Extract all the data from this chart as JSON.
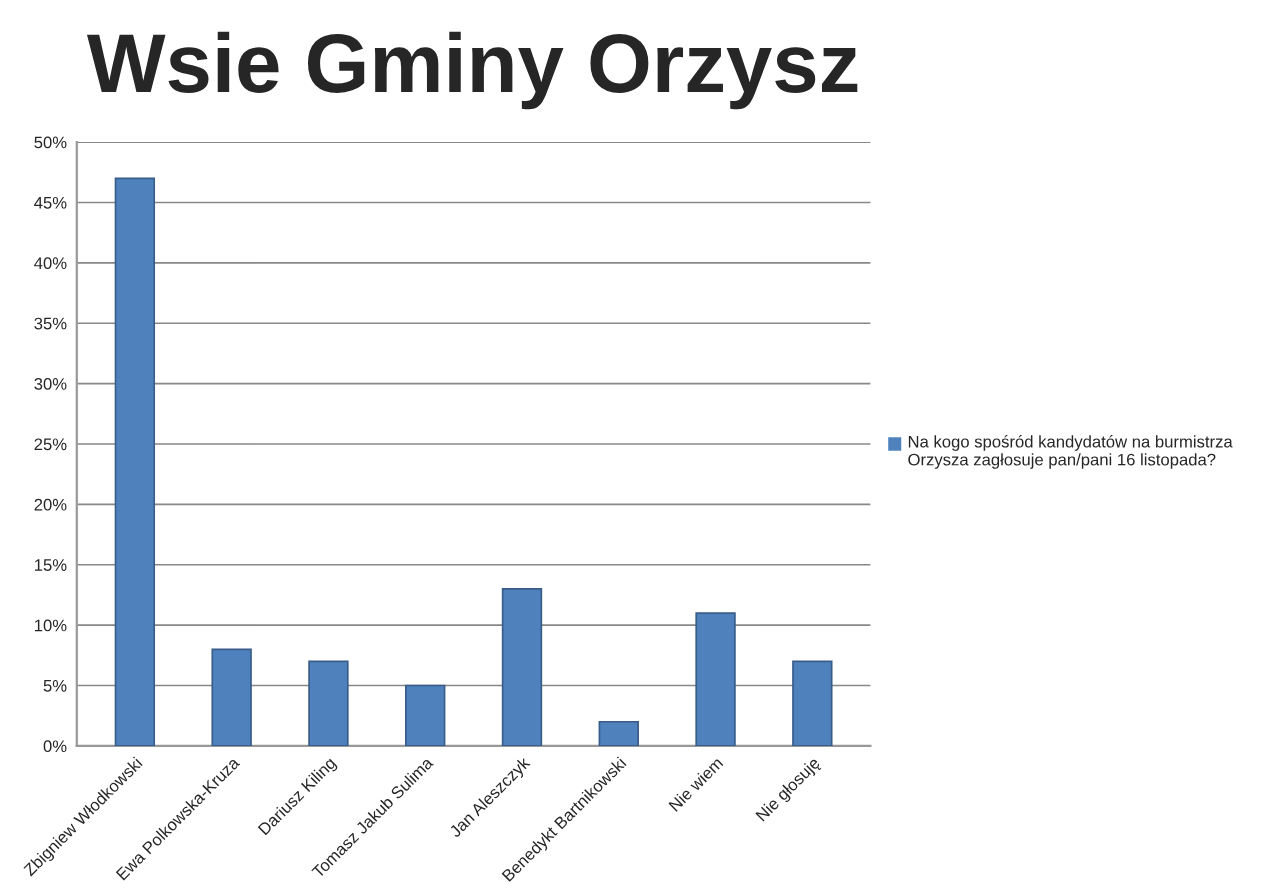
{
  "chart_data": {
    "type": "bar",
    "title": "Wsie Gminy Orzysz",
    "categories": [
      "Zbigniew Włodkowski",
      "Ewa Polkowska-Kruza",
      "Dariusz Kiling",
      "Tomasz Jakub Sulima",
      "Jan Aleszczyk",
      "Benedykt Bartnikowski",
      "Nie wiem",
      "Nie głosuję"
    ],
    "series": [
      {
        "name": "Na kogo spośród kandydatów na burmistrza Orzysza zagłosuje pan/pani 16 listopada?",
        "color": "#4f81bd",
        "values": [
          47,
          8,
          7,
          5,
          13,
          2,
          11,
          7
        ]
      }
    ],
    "ylim": [
      0,
      50
    ],
    "yticks": [
      {
        "value": 0,
        "label": "0%"
      },
      {
        "value": 5,
        "label": "5%"
      },
      {
        "value": 10,
        "label": "10%"
      },
      {
        "value": 15,
        "label": "15%"
      },
      {
        "value": 20,
        "label": "20%"
      },
      {
        "value": 25,
        "label": "25%"
      },
      {
        "value": 30,
        "label": "30%"
      },
      {
        "value": 35,
        "label": "35%"
      },
      {
        "value": 40,
        "label": "40%"
      },
      {
        "value": 45,
        "label": "45%"
      },
      {
        "value": 50,
        "label": "50%"
      }
    ],
    "grid": "y",
    "legend": "right"
  }
}
